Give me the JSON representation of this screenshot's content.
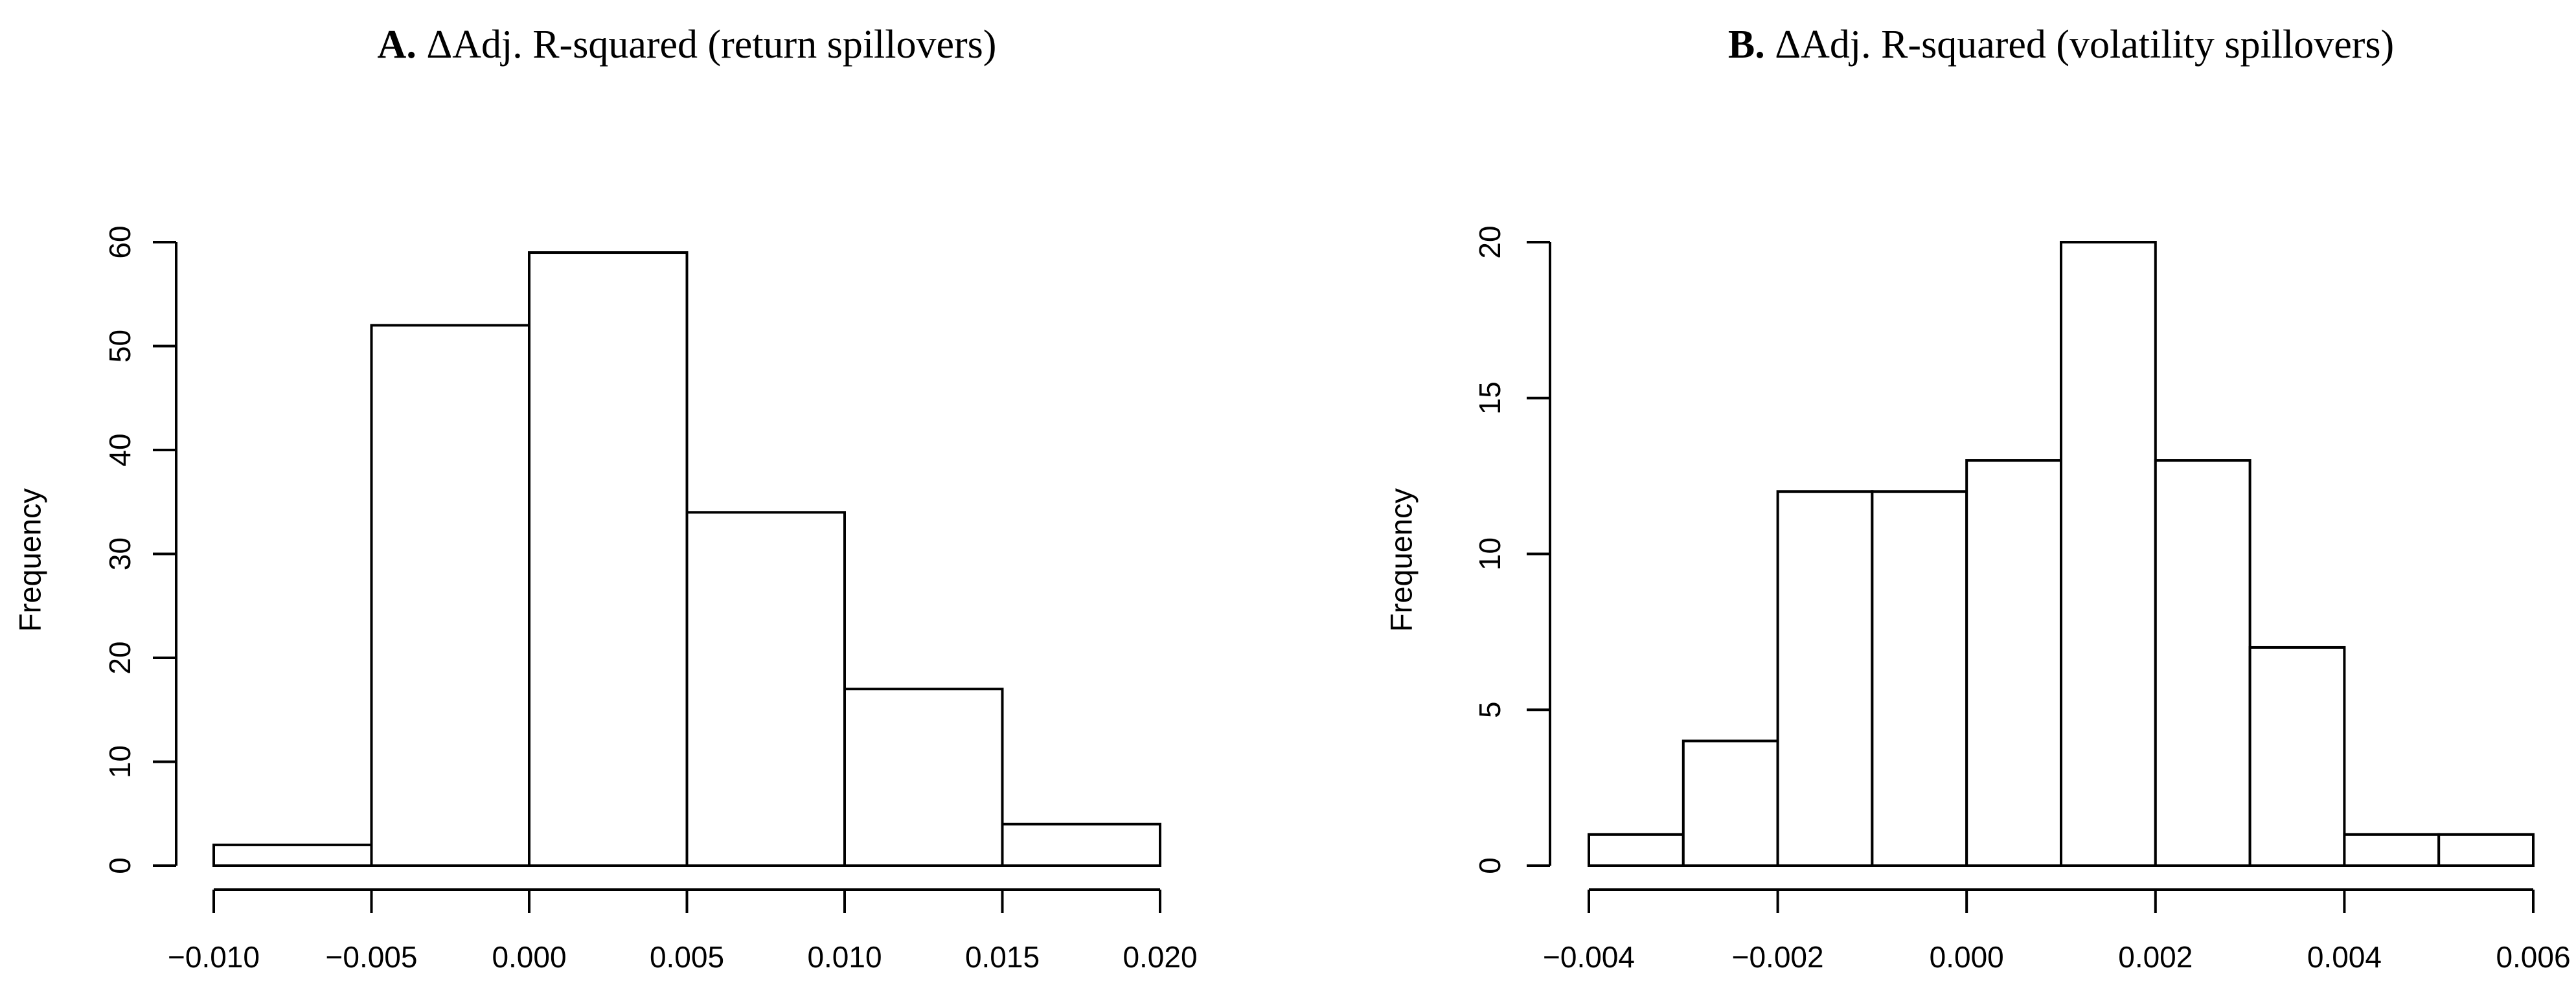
{
  "figure": {
    "background": "#ffffff",
    "ink_color": "#000000"
  },
  "chart_data": [
    {
      "type": "histogram",
      "panel_label": "A.",
      "title": "ΔAdj. R-squared (return spillovers)",
      "xlabel": "",
      "ylabel": "Frequency",
      "bin_edges": [
        -0.01,
        -0.005,
        0.0,
        0.005,
        0.01,
        0.015,
        0.02
      ],
      "counts": [
        2,
        52,
        59,
        34,
        17,
        4
      ],
      "xlim": [
        -0.01,
        0.02
      ],
      "ylim": [
        0,
        60
      ],
      "x_tick_values": [
        -0.01,
        -0.005,
        0.0,
        0.005,
        0.01,
        0.015,
        0.02
      ],
      "x_tick_labels": [
        "−0.010",
        "−0.005",
        "0.000",
        "0.005",
        "0.010",
        "0.015",
        "0.020"
      ],
      "y_tick_values": [
        0,
        10,
        20,
        30,
        40,
        50,
        60
      ],
      "y_tick_labels": [
        "0",
        "10",
        "20",
        "30",
        "40",
        "50",
        "60"
      ],
      "grid": "off",
      "legend": "none",
      "bar_fill": "#ffffff",
      "bar_stroke": "#000000"
    },
    {
      "type": "histogram",
      "panel_label": "B.",
      "title": "ΔAdj. R-squared (volatility spillovers)",
      "xlabel": "",
      "ylabel": "Frequency",
      "bin_edges": [
        -0.004,
        -0.003,
        -0.002,
        -0.001,
        0.0,
        0.001,
        0.002,
        0.003,
        0.004,
        0.005,
        0.006
      ],
      "counts": [
        1,
        4,
        12,
        12,
        13,
        20,
        13,
        7,
        1,
        1
      ],
      "xlim": [
        -0.004,
        0.006
      ],
      "ylim": [
        0,
        20
      ],
      "x_tick_values": [
        -0.004,
        -0.002,
        0.0,
        0.002,
        0.004,
        0.006
      ],
      "x_tick_labels": [
        "−0.004",
        "−0.002",
        "0.000",
        "0.002",
        "0.004",
        "0.006"
      ],
      "y_tick_values": [
        0,
        5,
        10,
        15,
        20
      ],
      "y_tick_labels": [
        "0",
        "5",
        "10",
        "15",
        "20"
      ],
      "grid": "off",
      "legend": "none",
      "bar_fill": "#ffffff",
      "bar_stroke": "#000000"
    }
  ]
}
